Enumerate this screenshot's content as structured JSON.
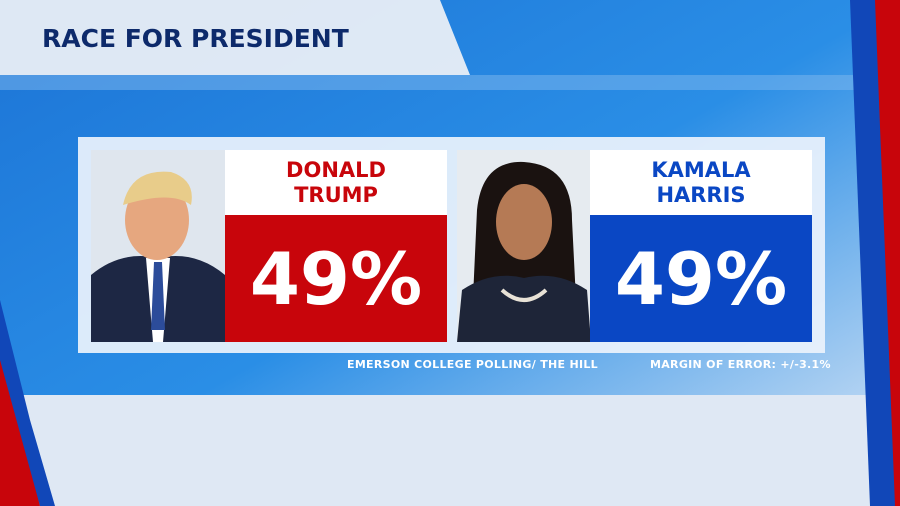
{
  "header": {
    "title": "RACE FOR PRESIDENT"
  },
  "candidates": [
    {
      "first": "DONALD",
      "last": "TRUMP",
      "percent": "49%",
      "color": "#c8050b"
    },
    {
      "first": "KAMALA",
      "last": "HARRIS",
      "percent": "49%",
      "color": "#0a47c4"
    }
  ],
  "footer": {
    "source": "EMERSON COLLEGE POLLING/ THE HILL",
    "margin": "MARGIN OF ERROR: +/-3.1%"
  }
}
